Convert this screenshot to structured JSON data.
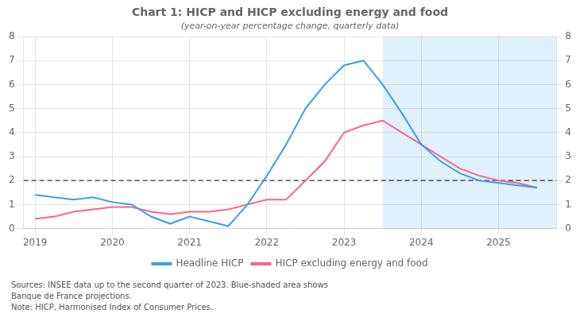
{
  "chart_data": {
    "type": "line",
    "title": "Chart 1: HICP and HICP excluding energy and food",
    "subtitle": "(year-on-year percentage change, quarterly data)",
    "annotations": [
      "Sources: INSEE data up to the second quarter of 2023. Blue-shaded area shows\nBanque de France projections.\nNote: HICP, Harmonised Index of Consumer Prices."
    ],
    "x": [
      2019.0,
      2019.25,
      2019.5,
      2019.75,
      2020.0,
      2020.25,
      2020.5,
      2020.75,
      2021.0,
      2021.25,
      2021.5,
      2021.75,
      2022.0,
      2022.25,
      2022.5,
      2022.75,
      2023.0,
      2023.25,
      2023.5,
      2023.75,
      2024.0,
      2024.25,
      2024.5,
      2024.75,
      2025.0,
      2025.25,
      2025.5
    ],
    "series": [
      {
        "name": "Headline HICP",
        "values": [
          1.4,
          1.3,
          1.2,
          1.3,
          1.1,
          1.0,
          0.5,
          0.2,
          0.5,
          0.3,
          0.1,
          1.0,
          2.2,
          3.5,
          5.0,
          6.0,
          6.8,
          7.0,
          6.0,
          4.8,
          3.5,
          2.8,
          2.3,
          2.0,
          1.9,
          1.8,
          1.7
        ]
      },
      {
        "name": "HICP excluding energy and food",
        "values": [
          0.4,
          0.5,
          0.7,
          0.8,
          0.9,
          0.9,
          0.7,
          0.6,
          0.7,
          0.7,
          0.8,
          1.0,
          1.2,
          1.2,
          2.0,
          2.8,
          4.0,
          4.3,
          4.5,
          4.0,
          3.5,
          3.0,
          2.5,
          2.2,
          2.0,
          1.9,
          1.7
        ]
      }
    ],
    "projection_span": [
      2023.5,
      2025.75
    ],
    "reference_line_y": 2.0,
    "xlim": [
      2018.85,
      2025.75
    ],
    "xticks": [
      2019,
      2020,
      2021,
      2022,
      2023,
      2024,
      2025
    ],
    "ylim": [
      0,
      8
    ],
    "yticks": [
      0,
      1,
      2,
      3,
      4,
      5,
      6,
      7,
      8
    ],
    "y2lim": [
      0,
      8
    ],
    "y2ticks": [
      0,
      1,
      2,
      3,
      4,
      5,
      6,
      7,
      8
    ],
    "grid": true,
    "legend": "bottom"
  }
}
